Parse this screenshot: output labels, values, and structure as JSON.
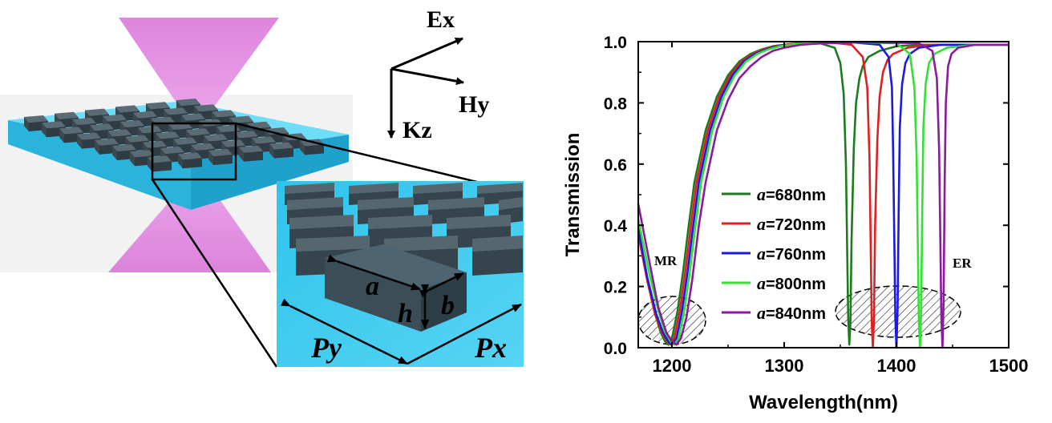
{
  "schematic": {
    "axes": {
      "e_label": "Ex",
      "h_label": "Hy",
      "k_label": "Kz"
    },
    "dims": {
      "a": "a",
      "h": "h",
      "b": "b",
      "py": "Py",
      "px": "Px"
    }
  },
  "chart_data": {
    "type": "line",
    "xlabel": "Wavelength(nm)",
    "ylabel": "Transmission",
    "xlim": [
      1170,
      1500
    ],
    "ylim": [
      0,
      1.0
    ],
    "xticks": [
      1200,
      1300,
      1400,
      1500
    ],
    "yticks": [
      0.0,
      0.2,
      0.4,
      0.6,
      0.8,
      1.0
    ],
    "xtick_labels": [
      "1200",
      "1300",
      "1400",
      "1500"
    ],
    "ytick_labels": [
      "0.0",
      "0.2",
      "0.4",
      "0.6",
      "0.8",
      "1.0"
    ],
    "legend_position": "center",
    "legend_prefix": "a",
    "annotations": {
      "mr": "MR",
      "er": "ER"
    },
    "series": [
      {
        "name": "=680nm",
        "color": "#1e7a1e",
        "x": [
          1170,
          1178,
          1185,
          1190,
          1194,
          1197,
          1200,
          1205,
          1210,
          1215,
          1220,
          1230,
          1240,
          1250,
          1260,
          1270,
          1280,
          1290,
          1300,
          1315,
          1330,
          1345,
          1350,
          1353,
          1355,
          1356,
          1357,
          1358,
          1359,
          1360,
          1362,
          1364,
          1367,
          1370,
          1375,
          1385,
          1400,
          1420,
          1450,
          1500
        ],
        "y": [
          0.38,
          0.22,
          0.11,
          0.05,
          0.02,
          0.01,
          0.03,
          0.12,
          0.25,
          0.4,
          0.54,
          0.71,
          0.82,
          0.89,
          0.935,
          0.96,
          0.975,
          0.985,
          0.99,
          0.995,
          0.997,
          0.98,
          0.93,
          0.83,
          0.6,
          0.35,
          0.1,
          0.01,
          0.08,
          0.35,
          0.65,
          0.8,
          0.88,
          0.92,
          0.95,
          0.97,
          0.985,
          0.99,
          0.99,
          0.99
        ]
      },
      {
        "name": "=720nm",
        "color": "#e02020",
        "x": [
          1170,
          1178,
          1185,
          1191,
          1196,
          1199,
          1202,
          1207,
          1212,
          1217,
          1222,
          1232,
          1242,
          1252,
          1262,
          1272,
          1282,
          1292,
          1305,
          1320,
          1340,
          1360,
          1370,
          1374,
          1376,
          1377,
          1378,
          1379,
          1380,
          1381,
          1383,
          1385,
          1388,
          1392,
          1397,
          1410,
          1430,
          1460,
          1500
        ],
        "y": [
          0.37,
          0.22,
          0.11,
          0.05,
          0.02,
          0.01,
          0.03,
          0.12,
          0.25,
          0.4,
          0.54,
          0.71,
          0.82,
          0.89,
          0.935,
          0.96,
          0.975,
          0.985,
          0.992,
          0.996,
          0.998,
          0.99,
          0.95,
          0.85,
          0.62,
          0.35,
          0.08,
          0.0,
          0.1,
          0.4,
          0.68,
          0.82,
          0.9,
          0.94,
          0.96,
          0.98,
          0.99,
          0.99,
          0.99
        ]
      },
      {
        "name": "=760nm",
        "color": "#1a1ae0",
        "x": [
          1170,
          1178,
          1186,
          1192,
          1197,
          1200,
          1204,
          1209,
          1214,
          1219,
          1224,
          1234,
          1244,
          1254,
          1264,
          1274,
          1284,
          1294,
          1310,
          1330,
          1360,
          1385,
          1393,
          1396,
          1397,
          1398,
          1399,
          1400,
          1401,
          1402,
          1403,
          1405,
          1408,
          1412,
          1420,
          1440,
          1470,
          1500
        ],
        "y": [
          0.39,
          0.23,
          0.11,
          0.05,
          0.02,
          0.01,
          0.03,
          0.12,
          0.25,
          0.4,
          0.54,
          0.71,
          0.82,
          0.89,
          0.935,
          0.96,
          0.975,
          0.985,
          0.992,
          0.997,
          0.998,
          0.99,
          0.95,
          0.85,
          0.65,
          0.38,
          0.1,
          0.0,
          0.12,
          0.45,
          0.72,
          0.86,
          0.93,
          0.96,
          0.98,
          0.99,
          0.99,
          0.99
        ]
      },
      {
        "name": "=800nm",
        "color": "#33e033",
        "x": [
          1170,
          1180,
          1188,
          1194,
          1199,
          1202,
          1206,
          1211,
          1216,
          1221,
          1226,
          1236,
          1246,
          1256,
          1266,
          1276,
          1286,
          1296,
          1310,
          1330,
          1360,
          1400,
          1412,
          1416,
          1418,
          1419,
          1420,
          1421,
          1422,
          1423,
          1424,
          1426,
          1429,
          1434,
          1445,
          1470,
          1500
        ],
        "y": [
          0.42,
          0.24,
          0.12,
          0.05,
          0.02,
          0.01,
          0.03,
          0.12,
          0.25,
          0.4,
          0.54,
          0.71,
          0.82,
          0.89,
          0.935,
          0.96,
          0.975,
          0.985,
          0.992,
          0.997,
          0.998,
          0.995,
          0.96,
          0.85,
          0.62,
          0.35,
          0.08,
          0.0,
          0.12,
          0.45,
          0.72,
          0.86,
          0.93,
          0.96,
          0.98,
          0.99,
          0.99
        ]
      },
      {
        "name": "=840nm",
        "color": "#8a1a9e",
        "x": [
          1170,
          1180,
          1188,
          1195,
          1200,
          1204,
          1208,
          1213,
          1218,
          1224,
          1230,
          1240,
          1250,
          1260,
          1270,
          1280,
          1290,
          1300,
          1315,
          1335,
          1370,
          1420,
          1432,
          1436,
          1438,
          1439,
          1440,
          1441,
          1442,
          1443,
          1444,
          1446,
          1449,
          1455,
          1470,
          1500
        ],
        "y": [
          0.47,
          0.28,
          0.13,
          0.05,
          0.02,
          0.01,
          0.03,
          0.1,
          0.22,
          0.4,
          0.54,
          0.71,
          0.81,
          0.88,
          0.92,
          0.95,
          0.97,
          0.98,
          0.99,
          0.995,
          0.998,
          0.995,
          0.97,
          0.88,
          0.65,
          0.38,
          0.1,
          0.0,
          0.15,
          0.55,
          0.8,
          0.92,
          0.96,
          0.98,
          0.99,
          0.99
        ]
      }
    ]
  }
}
